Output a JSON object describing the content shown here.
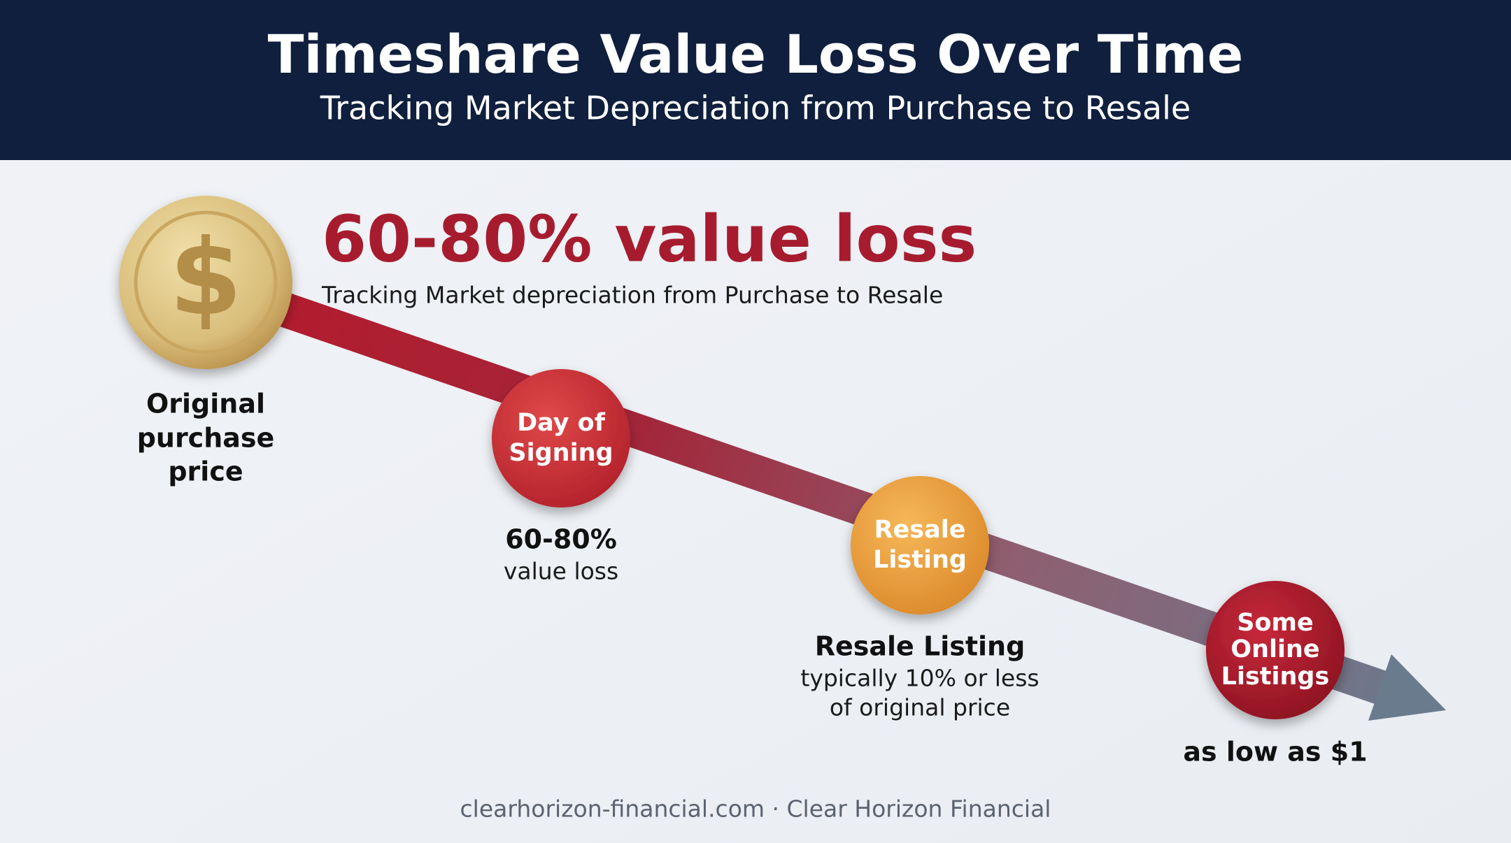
{
  "header": {
    "title": "Timeshare Value Loss Over Time",
    "subtitle": "Tracking Market Depreciation from Purchase to Resale"
  },
  "headline": {
    "title": "60-80% value loss",
    "subtitle": "Tracking Market depreciation from Purchase to Resale"
  },
  "coin_symbol": "$",
  "milestones": [
    {
      "label_lines": [
        "Original",
        "purchase",
        "price"
      ]
    },
    {
      "circle_lines": [
        "Day of",
        "Signing"
      ],
      "label_lines": [
        "60-80%",
        "value loss"
      ]
    },
    {
      "circle_lines": [
        "Resale",
        "Listing"
      ],
      "label_lines": [
        "Resale Listing",
        "typically 10% or less",
        "of original price"
      ]
    },
    {
      "circle_lines": [
        "Some",
        "Online",
        "Listings"
      ],
      "label_lines": [
        "as low as $1"
      ]
    }
  ],
  "footer": "clearhorizon-financial.com · Clear Horizon Financial"
}
